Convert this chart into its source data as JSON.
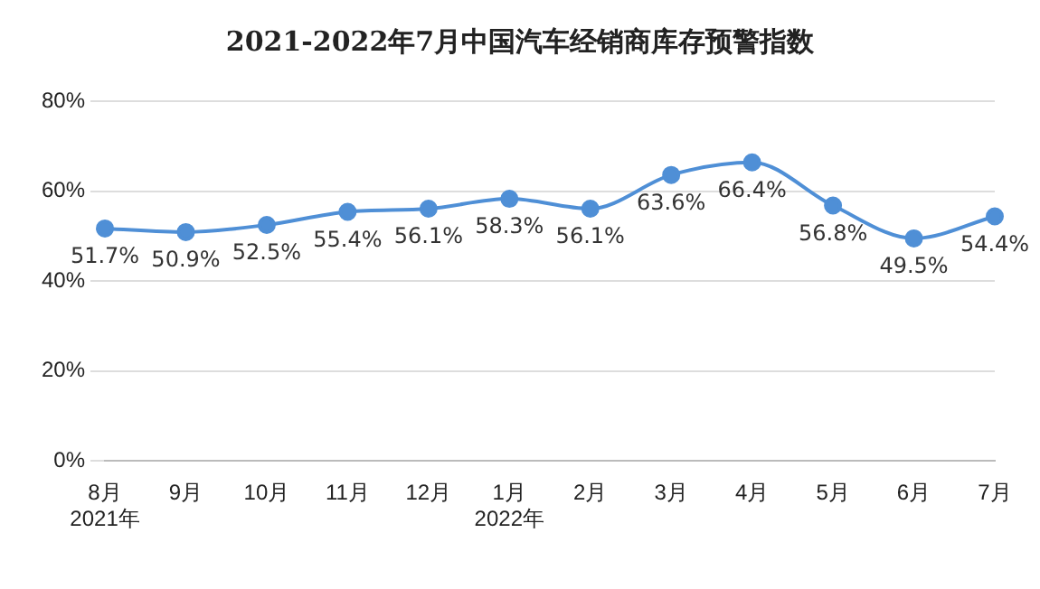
{
  "chart_data": {
    "type": "line",
    "title": "2021-2022年7月中国汽车经销商库存预警指数",
    "categories": [
      "8月\n2021年",
      "9月",
      "10月",
      "11月",
      "12月",
      "1月\n2022年",
      "2月",
      "3月",
      "4月",
      "5月",
      "6月",
      "7月"
    ],
    "series": [
      {
        "color": "#4f8fd6",
        "values": [
          51.7,
          50.9,
          52.5,
          55.4,
          56.1,
          58.3,
          56.1,
          63.6,
          66.4,
          56.8,
          49.5,
          54.4
        ],
        "value_labels": [
          "51.7%",
          "50.9%",
          "52.5%",
          "55.4%",
          "56.1%",
          "58.3%",
          "56.1%",
          "63.6%",
          "66.4%",
          "56.8%",
          "49.5%",
          "54.4%"
        ]
      }
    ],
    "ylim": [
      0,
      80
    ],
    "yticks": [
      {
        "value": 0,
        "label": "0%"
      },
      {
        "value": 20,
        "label": "20%"
      },
      {
        "value": 40,
        "label": "40%"
      },
      {
        "value": 60,
        "label": "60%"
      },
      {
        "value": 80,
        "label": "80%"
      }
    ],
    "grid": "y",
    "marker": "circle",
    "line_style": "solid",
    "legend": false
  }
}
